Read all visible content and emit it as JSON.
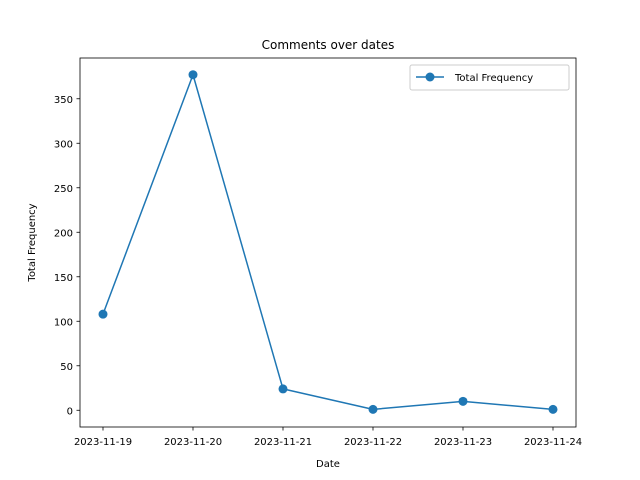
{
  "chart_data": {
    "type": "line",
    "title": "Comments over dates",
    "xlabel": "Date",
    "ylabel": "Total Frequency",
    "categories": [
      "2023-11-19",
      "2023-11-20",
      "2023-11-21",
      "2023-11-22",
      "2023-11-23",
      "2023-11-24"
    ],
    "series": [
      {
        "name": "Total Frequency",
        "values": [
          108,
          377,
          24,
          1,
          10,
          1
        ],
        "color": "#1f77b4",
        "marker": "circle"
      }
    ],
    "ylim": [
      -18.8,
      395.8
    ],
    "yticks": [
      0,
      50,
      100,
      150,
      200,
      250,
      300,
      350
    ],
    "grid": false,
    "legend": "upper right"
  }
}
